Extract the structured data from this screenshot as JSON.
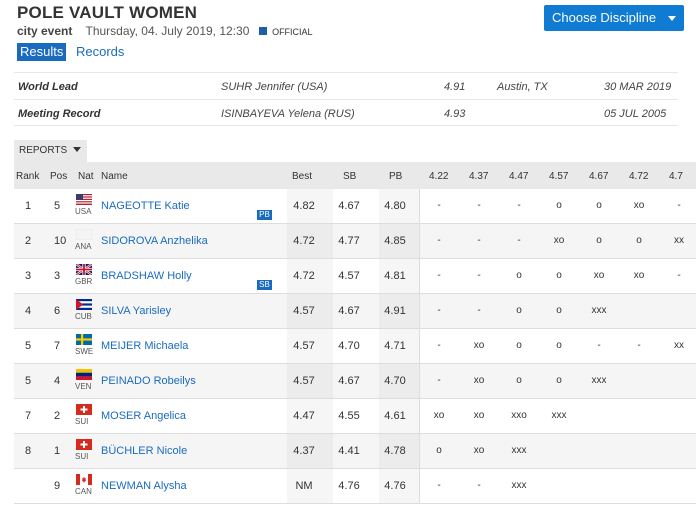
{
  "header": {
    "title": "POLE VAULT WOMEN",
    "event_type": "city event",
    "datetime": "Thursday, 04. July 2019, 12:30",
    "official_label": "OFFICIAL",
    "choose_label": "Choose Discipline"
  },
  "tabs": {
    "results": "Results",
    "records": "Records"
  },
  "leads": [
    {
      "label": "World Lead",
      "athlete": "SUHR Jennifer (USA)",
      "mark": "4.91",
      "place": "Austin, TX",
      "date": "30 MAR 2019"
    },
    {
      "label": "Meeting Record",
      "athlete": "ISINBAYEVA Yelena (RUS)",
      "mark": "4.93",
      "place": "",
      "date": "05 JUL 2005"
    }
  ],
  "reports_label": "REPORTS",
  "columns": {
    "rank": "Rank",
    "pos": "Pos",
    "nat": "Nat",
    "name": "Name",
    "best": "Best",
    "sb": "SB",
    "pb": "PB",
    "heights": [
      "4.22",
      "4.37",
      "4.47",
      "4.57",
      "4.67",
      "4.72",
      "4.7"
    ]
  },
  "rows": [
    {
      "rank": "1",
      "pos": "5",
      "nat": "USA",
      "flag": "usa",
      "name": "NAGEOTTE Katie",
      "badge": "PB",
      "best": "4.82",
      "sb": "4.67",
      "pb": "4.80",
      "att": [
        "-",
        "-",
        "-",
        "o",
        "o",
        "xo",
        "-"
      ]
    },
    {
      "rank": "2",
      "pos": "10",
      "nat": "ANA",
      "flag": "ana",
      "name": "SIDOROVA Anzhelika",
      "badge": "",
      "best": "4.72",
      "sb": "4.77",
      "pb": "4.85",
      "att": [
        "-",
        "-",
        "-",
        "xo",
        "o",
        "o",
        "xx"
      ]
    },
    {
      "rank": "3",
      "pos": "3",
      "nat": "GBR",
      "flag": "gbr",
      "name": "BRADSHAW Holly",
      "badge": "SB",
      "best": "4.72",
      "sb": "4.57",
      "pb": "4.81",
      "att": [
        "-",
        "-",
        "o",
        "o",
        "xo",
        "xo",
        "-"
      ]
    },
    {
      "rank": "4",
      "pos": "6",
      "nat": "CUB",
      "flag": "cub",
      "name": "SILVA Yarisley",
      "badge": "",
      "best": "4.57",
      "sb": "4.67",
      "pb": "4.91",
      "att": [
        "-",
        "-",
        "o",
        "o",
        "xxx",
        "",
        ""
      ]
    },
    {
      "rank": "5",
      "pos": "7",
      "nat": "SWE",
      "flag": "swe",
      "name": "MEIJER Michaela",
      "badge": "",
      "best": "4.57",
      "sb": "4.70",
      "pb": "4.71",
      "att": [
        "-",
        "xo",
        "o",
        "o",
        "-",
        "-",
        "xx"
      ]
    },
    {
      "rank": "5",
      "pos": "4",
      "nat": "VEN",
      "flag": "ven",
      "name": "PEINADO Robeilys",
      "badge": "",
      "best": "4.57",
      "sb": "4.67",
      "pb": "4.70",
      "att": [
        "-",
        "xo",
        "o",
        "o",
        "xxx",
        "",
        ""
      ]
    },
    {
      "rank": "7",
      "pos": "2",
      "nat": "SUI",
      "flag": "sui",
      "name": "MOSER Angelica",
      "badge": "",
      "best": "4.47",
      "sb": "4.55",
      "pb": "4.61",
      "att": [
        "xo",
        "xo",
        "xxo",
        "xxx",
        "",
        "",
        ""
      ]
    },
    {
      "rank": "8",
      "pos": "1",
      "nat": "SUI",
      "flag": "sui",
      "name": "BÜCHLER Nicole",
      "badge": "",
      "best": "4.37",
      "sb": "4.41",
      "pb": "4.78",
      "att": [
        "o",
        "xo",
        "xxx",
        "",
        "",
        "",
        ""
      ]
    },
    {
      "rank": "",
      "pos": "9",
      "nat": "CAN",
      "flag": "can",
      "name": "NEWMAN Alysha",
      "badge": "",
      "best": "NM",
      "sb": "4.76",
      "pb": "4.76",
      "att": [
        "-",
        "-",
        "xxx",
        "",
        "",
        "",
        ""
      ]
    }
  ]
}
